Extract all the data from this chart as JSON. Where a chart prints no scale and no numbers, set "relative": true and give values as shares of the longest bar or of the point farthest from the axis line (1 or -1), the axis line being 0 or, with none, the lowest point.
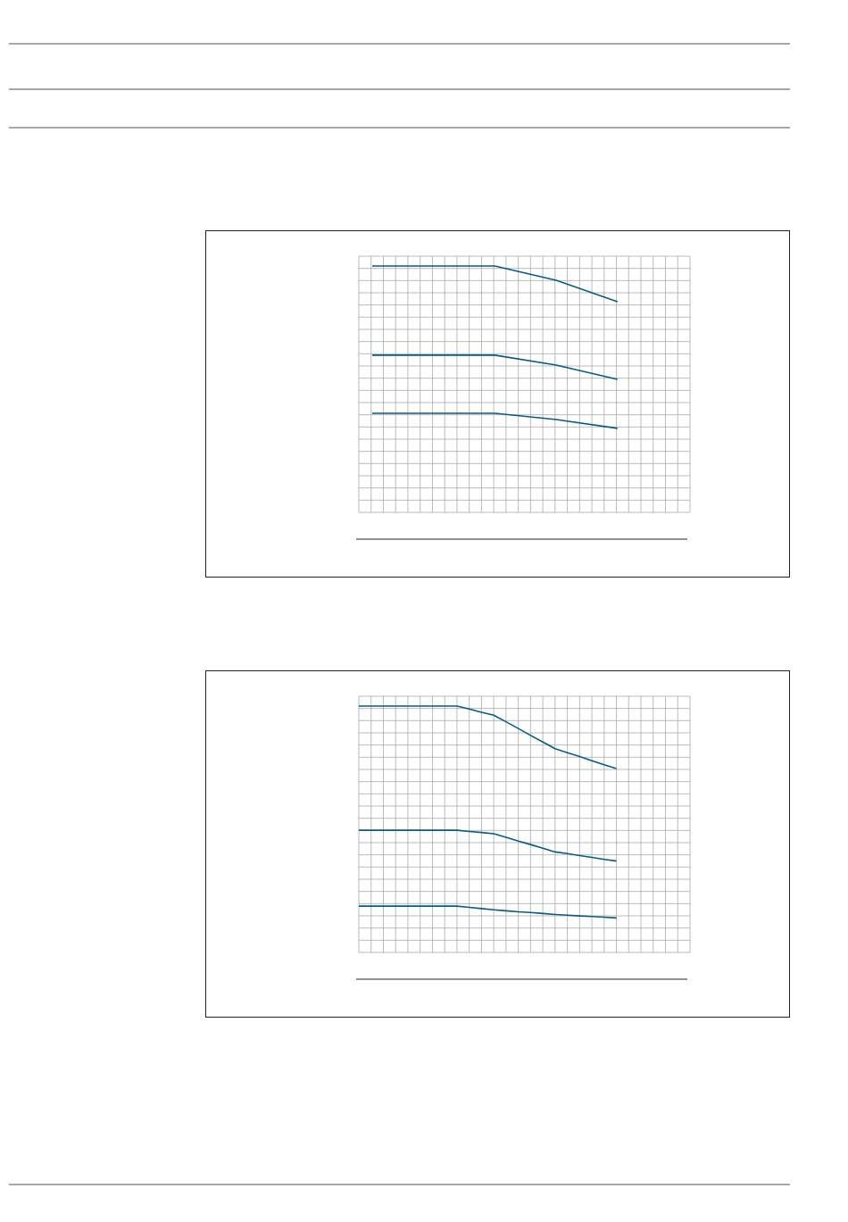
{
  "chart_data": [
    {
      "type": "line",
      "relative": true,
      "grid": true,
      "categories": [
        null,
        null,
        null,
        null,
        null
      ],
      "series": [
        {
          "color": "#0d5a7d",
          "values": [
            1,
            1,
            1,
            0.942,
            0.855
          ]
        },
        {
          "color": "#0d5a7d",
          "values": [
            0.638,
            0.638,
            0.638,
            0.598,
            0.54
          ]
        },
        {
          "color": "#0d5a7d",
          "values": [
            0.402,
            0.402,
            0.402,
            0.377,
            0.341
          ]
        }
      ]
    },
    {
      "type": "line",
      "relative": true,
      "grid": true,
      "categories": [
        null,
        null,
        null,
        null,
        null,
        null,
        null,
        null,
        null,
        null,
        null,
        null,
        null,
        null,
        null,
        null,
        null,
        null,
        null,
        null,
        null,
        null
      ],
      "series": [
        {
          "color": "#0d5a7d",
          "values": [
            1,
            1,
            1,
            1,
            1,
            1,
            1,
            1,
            1,
            0.988,
            0.975,
            0.963,
            0.936,
            0.909,
            0.881,
            0.854,
            0.827,
            0.811,
            0.795,
            0.778,
            0.762,
            0.746
          ]
        },
        {
          "color": "#0d5a7d",
          "values": [
            0.496,
            0.496,
            0.496,
            0.496,
            0.496,
            0.496,
            0.496,
            0.496,
            0.496,
            0.491,
            0.487,
            0.482,
            0.467,
            0.452,
            0.438,
            0.423,
            0.408,
            0.401,
            0.393,
            0.386,
            0.378,
            0.371
          ]
        },
        {
          "color": "#0d5a7d",
          "values": [
            0.188,
            0.188,
            0.188,
            0.188,
            0.188,
            0.188,
            0.188,
            0.188,
            0.188,
            0.183,
            0.178,
            0.173,
            0.169,
            0.165,
            0.162,
            0.158,
            0.154,
            0.151,
            0.148,
            0.146,
            0.143,
            0.14
          ]
        }
      ]
    }
  ]
}
